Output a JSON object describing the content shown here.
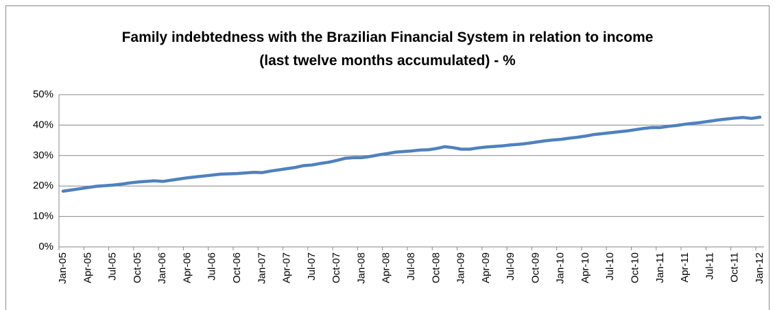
{
  "chart_data": {
    "type": "line",
    "title": "Family indebtedness with the Brazilian Financial System in relation to income (last twelve months accumulated) - %",
    "categories": [
      "Jan-05",
      null,
      null,
      "Apr-05",
      null,
      null,
      "Jul-05",
      null,
      null,
      "Oct-05",
      null,
      null,
      "Jan-06",
      null,
      null,
      "Apr-06",
      null,
      null,
      "Jul-06",
      null,
      null,
      "Oct-06",
      null,
      null,
      "Jan-07",
      null,
      null,
      "Apr-07",
      null,
      null,
      "Jul-07",
      null,
      null,
      "Oct-07",
      null,
      null,
      "Jan-08",
      null,
      null,
      "Apr-08",
      null,
      null,
      "Jul-08",
      null,
      null,
      "Oct-08",
      null,
      null,
      "Jan-09",
      null,
      null,
      "Apr-09",
      null,
      null,
      "Jul-09",
      null,
      null,
      "Oct-09",
      null,
      null,
      "Jan-10",
      null,
      null,
      "Apr-10",
      null,
      null,
      "Jul-10",
      null,
      null,
      "Oct-10",
      null,
      null,
      "Jan-11",
      null,
      null,
      "Apr-11",
      null,
      null,
      "Jul-11",
      null,
      null,
      "Oct-11",
      null,
      null,
      "Jan-12"
    ],
    "values": [
      18.3,
      18.7,
      19.1,
      19.5,
      19.9,
      20.1,
      20.3,
      20.6,
      21.0,
      21.3,
      21.5,
      21.7,
      21.5,
      21.9,
      22.3,
      22.7,
      23.0,
      23.3,
      23.6,
      23.9,
      24.0,
      24.1,
      24.3,
      24.5,
      24.4,
      24.9,
      25.3,
      25.7,
      26.1,
      26.7,
      26.9,
      27.4,
      27.8,
      28.4,
      29.1,
      29.3,
      29.3,
      29.7,
      30.2,
      30.6,
      31.1,
      31.3,
      31.5,
      31.8,
      31.9,
      32.3,
      32.9,
      32.6,
      32.1,
      32.1,
      32.5,
      32.8,
      33.0,
      33.2,
      33.5,
      33.7,
      34.0,
      34.4,
      34.8,
      35.1,
      35.3,
      35.7,
      36.0,
      36.4,
      36.9,
      37.2,
      37.5,
      37.8,
      38.1,
      38.5,
      38.9,
      39.2,
      39.2,
      39.6,
      39.9,
      40.3,
      40.6,
      40.9,
      41.3,
      41.7,
      42.0,
      42.3,
      42.5,
      42.2,
      42.6
    ],
    "color": "#4f81bd",
    "ylim": [
      0,
      50
    ],
    "yticks": [
      {
        "value": 0,
        "label": "0%"
      },
      {
        "value": 10,
        "label": "10%"
      },
      {
        "value": 20,
        "label": "20%"
      },
      {
        "value": 30,
        "label": "30%"
      },
      {
        "value": 40,
        "label": "40%"
      },
      {
        "value": 50,
        "label": "50%"
      }
    ],
    "grid": true
  }
}
